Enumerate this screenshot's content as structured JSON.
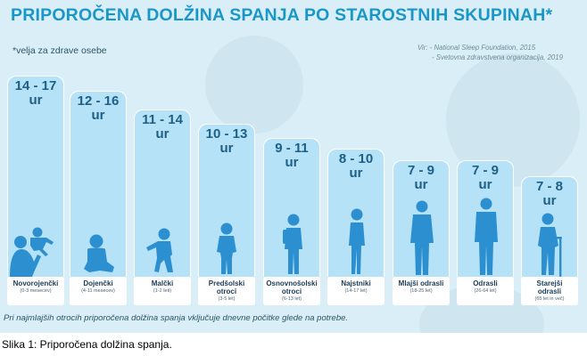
{
  "title": "PRIPOROČENA DOLŽINA SPANJA PO STAROSTNIH SKUPINAH*",
  "note": "*velja za zdrave osebe",
  "source": {
    "line1": "Vir:   - National Sleep Foundation, 2015",
    "line2": "- Svetovna zdravstvena organizacija, 2019"
  },
  "groups": [
    {
      "range": "14 - 17",
      "unit": "ur",
      "name1": "Novorojenčki",
      "name2": "",
      "age": "(0-3 mesecev)"
    },
    {
      "range": "12 - 16",
      "unit": "ur",
      "name1": "Dojenčki",
      "name2": "",
      "age": "(4-11 mesecev)"
    },
    {
      "range": "11 - 14",
      "unit": "ur",
      "name1": "Malčki",
      "name2": "",
      "age": "(1-2 leti)"
    },
    {
      "range": "10 - 13",
      "unit": "ur",
      "name1": "Predšolski",
      "name2": "otroci",
      "age": "(3-5 let)"
    },
    {
      "range": "9 - 11",
      "unit": "ur",
      "name1": "Osnovnošolski",
      "name2": "otroci",
      "age": "(6-13 let)"
    },
    {
      "range": "8 - 10",
      "unit": "ur",
      "name1": "Najstniki",
      "name2": "",
      "age": "(14-17 let)"
    },
    {
      "range": "7 - 9",
      "unit": "ur",
      "name1": "Mlajši odrasli",
      "name2": "",
      "age": "(18-25 let)"
    },
    {
      "range": "7 - 9",
      "unit": "ur",
      "name1": "Odrasli",
      "name2": "",
      "age": "(26-64 let)"
    },
    {
      "range": "7 - 8",
      "unit": "ur",
      "name1": "Starejši",
      "name2": "odrasli",
      "age": "(65 let in več)"
    }
  ],
  "icons": [
    "parent-with-baby-icon",
    "sitting-baby-icon",
    "toddler-icon",
    "preschool-child-icon",
    "schoolchild-icon",
    "teenager-icon",
    "young-adult-icon",
    "adult-icon",
    "elderly-with-cane-icon"
  ],
  "colors": {
    "title": "#1a97c9",
    "bar": "#b6e2f8",
    "figure": "#2c8fd0",
    "background": "#d9eef6"
  },
  "footnote": "Pri najmlajših otrocih priporočena dolžina spanja vključuje dnevne počitke glede na potrebe.",
  "caption": "Slika 1: Priporočena dolžina spanja."
}
